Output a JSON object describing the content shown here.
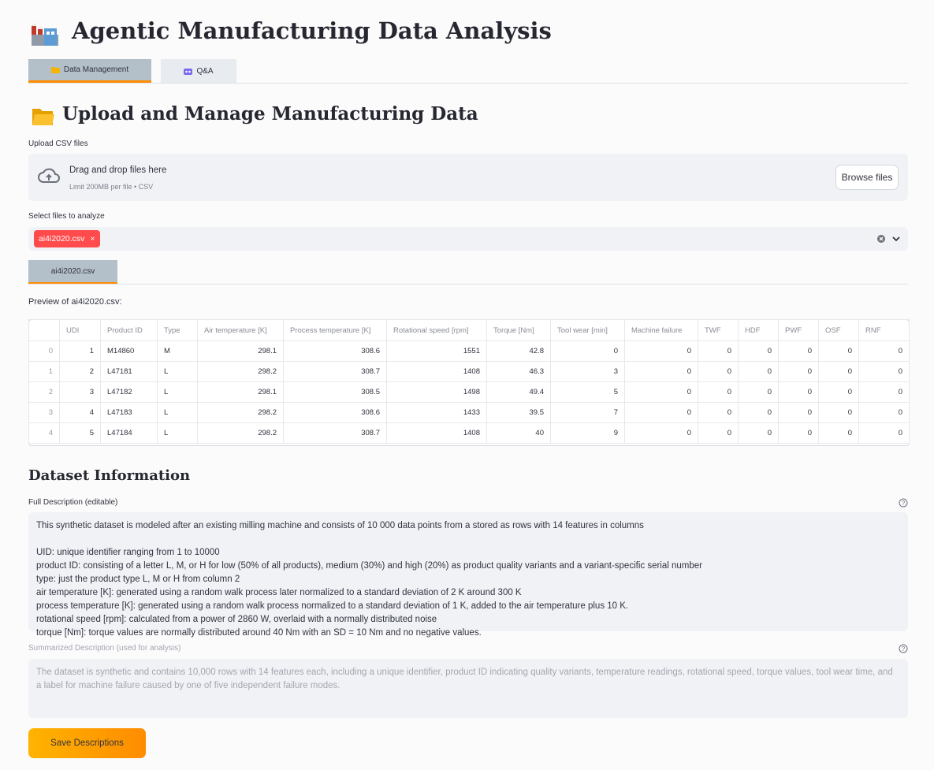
{
  "header": {
    "title": "Agentic Manufacturing Data Analysis"
  },
  "tabs": [
    "Data Management",
    "Q&A"
  ],
  "section": {
    "title": "Upload and Manage Manufacturing Data"
  },
  "uploader": {
    "label": "Upload CSV files",
    "dropzone_text": "Drag and drop files here",
    "limit_text": "Limit 200MB per file • CSV",
    "button": "Browse files"
  },
  "file_select": {
    "label": "Select files to analyze",
    "selected": [
      "ai4i2020.csv"
    ]
  },
  "file_tabs": [
    "ai4i2020.csv"
  ],
  "preview": {
    "caption": "Preview of ai4i2020.csv:",
    "table": {
      "columns": [
        "UDI",
        "Product ID",
        "Type",
        "Air temperature [K]",
        "Process temperature [K]",
        "Rotational speed [rpm]",
        "Torque [Nm]",
        "Tool wear [min]",
        "Machine failure",
        "TWF",
        "HDF",
        "PWF",
        "OSF",
        "RNF"
      ],
      "index": [
        0,
        1,
        2,
        3,
        4
      ],
      "rows": [
        [
          1,
          "M14860",
          "M",
          298.1,
          308.6,
          1551,
          42.8,
          0,
          0,
          0,
          0,
          0,
          0,
          0
        ],
        [
          2,
          "L47181",
          "L",
          298.2,
          308.7,
          1408,
          46.3,
          3,
          0,
          0,
          0,
          0,
          0,
          0
        ],
        [
          3,
          "L47182",
          "L",
          298.1,
          308.5,
          1498,
          49.4,
          5,
          0,
          0,
          0,
          0,
          0,
          0
        ],
        [
          4,
          "L47183",
          "L",
          298.2,
          308.6,
          1433,
          39.5,
          7,
          0,
          0,
          0,
          0,
          0,
          0
        ],
        [
          5,
          "L47184",
          "L",
          298.2,
          308.7,
          1408,
          40,
          9,
          0,
          0,
          0,
          0,
          0,
          0
        ]
      ]
    }
  },
  "dataset_info": {
    "title": "Dataset Information",
    "full_description": {
      "label": "Full Description (editable)",
      "intro": "This synthetic dataset is modeled after an existing milling machine and consists of 10 000 data points from a stored as rows with 14 features in columns",
      "lines": [
        "UID: unique identifier ranging from 1 to 10000",
        "product ID: consisting of a letter L, M, or H for low (50% of all products), medium (30%) and high (20%) as product quality variants and a variant-specific serial number",
        "type: just the product type L, M or H from column 2",
        "air temperature [K]: generated using a random walk process later normalized to a standard deviation of 2 K around 300 K",
        "process temperature [K]: generated using a random walk process normalized to a standard deviation of 1 K, added to the air temperature plus 10 K.",
        "rotational speed [rpm]: calculated from a power of 2860 W, overlaid with a normally distributed noise",
        "torque [Nm]: torque values are normally distributed around 40 Nm with an SD = 10 Nm and no negative values."
      ]
    },
    "summary": {
      "label": "Summarized Description (used for analysis)",
      "text": "The dataset is synthetic and contains 10,000 rows with 14 features each, including a unique identifier, product ID indicating quality variants, temperature readings, rotational speed, torque values, tool wear time, and a label for machine failure caused by one of five independent failure modes."
    },
    "save_button": "Save Descriptions"
  }
}
